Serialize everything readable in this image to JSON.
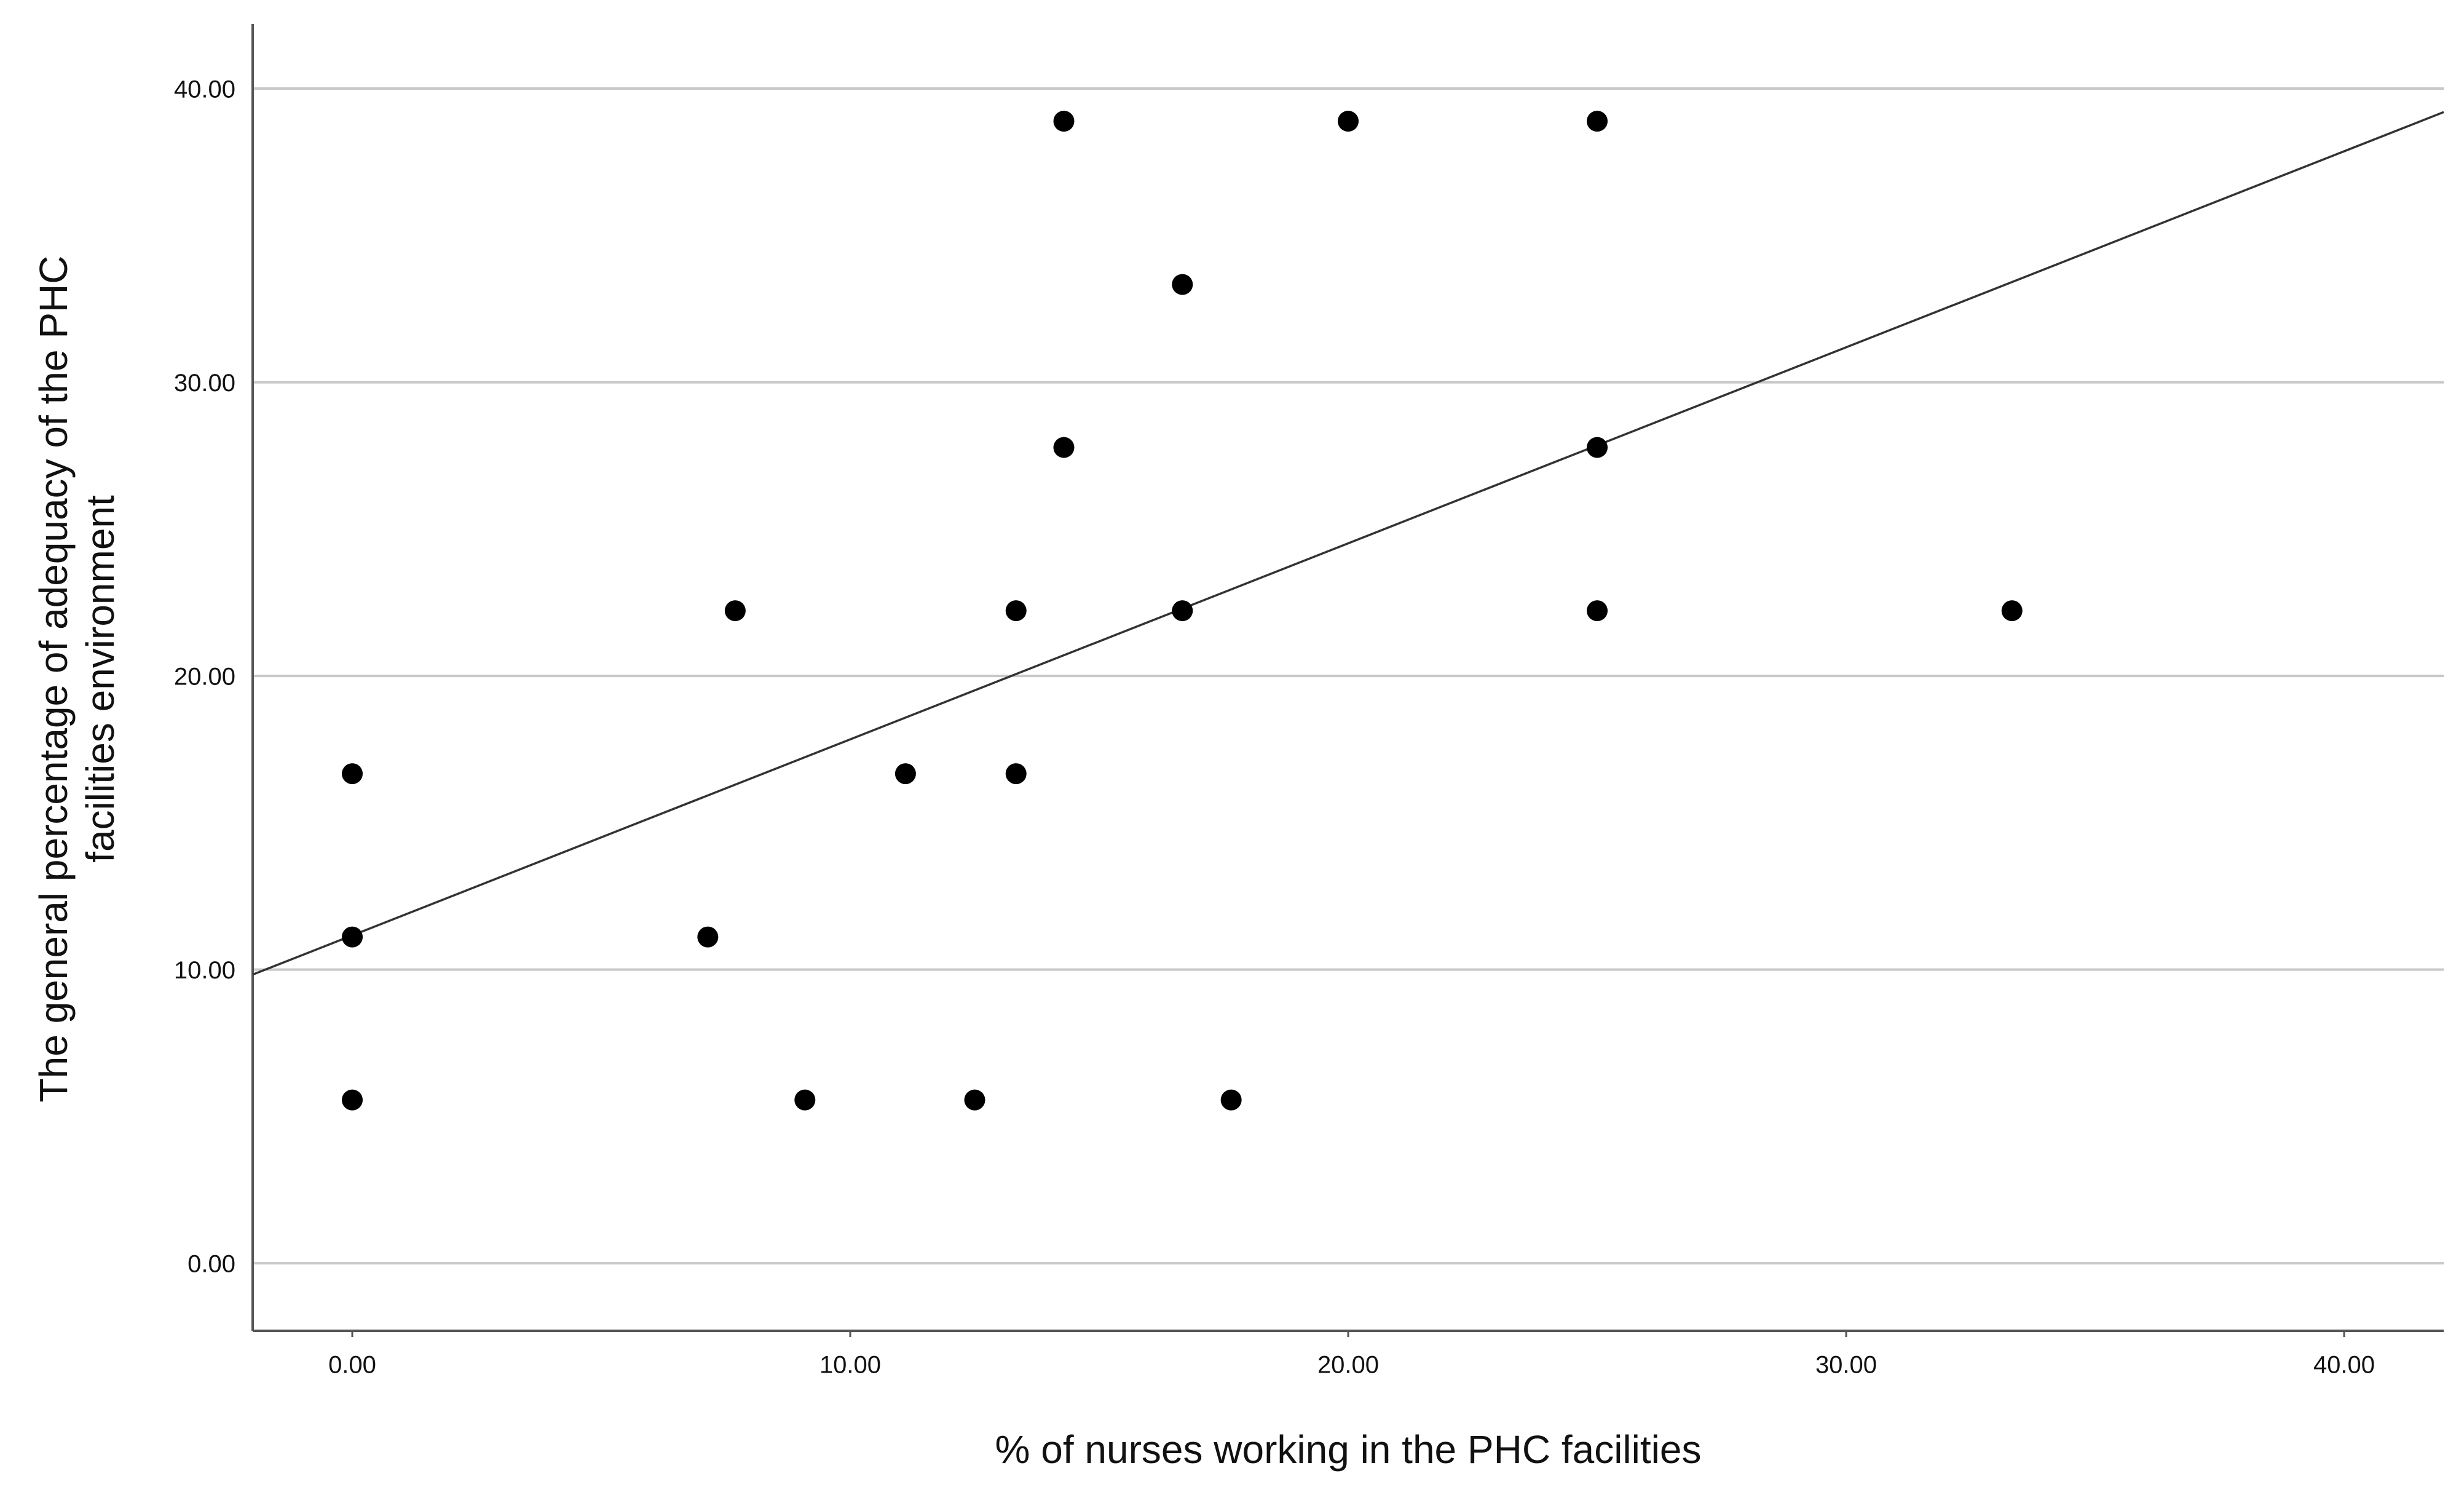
{
  "chart_data": {
    "type": "scatter",
    "x_label": "% of nurses working in the PHC facilities",
    "y_label": [
      "The general percentage of adequacy of the PHC",
      "facilities environment"
    ],
    "x": [
      0,
      0,
      0,
      7.14,
      7.69,
      9.09,
      11.11,
      12.5,
      13.33,
      13.33,
      14.29,
      14.29,
      16.67,
      16.67,
      17.65,
      20,
      25,
      25,
      25,
      33.33
    ],
    "y": [
      16.67,
      11.11,
      5.56,
      11.11,
      22.22,
      5.56,
      16.67,
      5.56,
      22.22,
      16.67,
      38.89,
      27.78,
      33.33,
      22.22,
      5.56,
      38.89,
      38.89,
      27.78,
      22.22,
      22.22
    ],
    "color": "#000000",
    "fit_line": {
      "x": [
        -2,
        42
      ],
      "y": [
        9.83,
        39.2
      ],
      "color": "#333333"
    },
    "xlim": [
      -2,
      42
    ],
    "ylim": [
      -2.3,
      42.2
    ],
    "xticks": [
      {
        "value": 0,
        "label": "0.00"
      },
      {
        "value": 10,
        "label": "10.00"
      },
      {
        "value": 20,
        "label": "20.00"
      },
      {
        "value": 30,
        "label": "30.00"
      },
      {
        "value": 40,
        "label": "40.00"
      }
    ],
    "yticks": [
      {
        "value": 0,
        "label": "0.00"
      },
      {
        "value": 10,
        "label": "10.00"
      },
      {
        "value": 20,
        "label": "20.00"
      },
      {
        "value": 30,
        "label": "30.00"
      },
      {
        "value": 40,
        "label": "40.00"
      }
    ],
    "grid": true
  }
}
